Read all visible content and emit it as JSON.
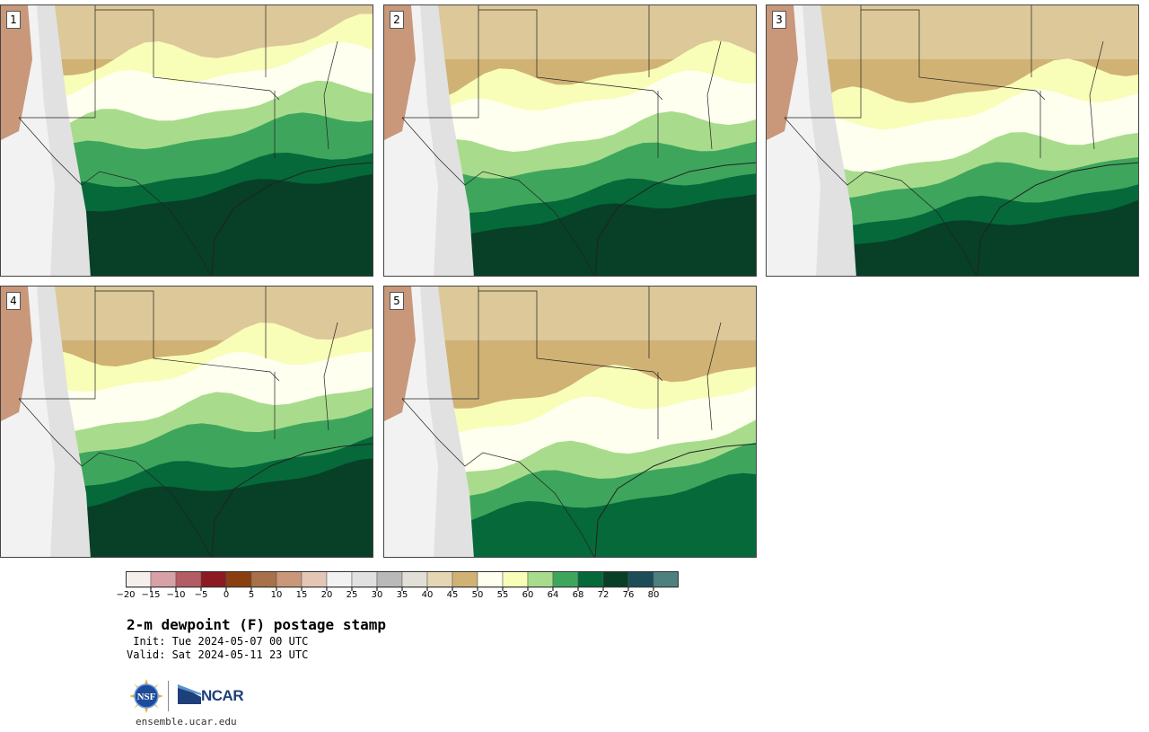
{
  "panels": [
    {
      "label": "1",
      "moist": 1.0
    },
    {
      "label": "2",
      "moist": 0.72
    },
    {
      "label": "3",
      "moist": 0.55
    },
    {
      "label": "4",
      "moist": 0.82
    },
    {
      "label": "5",
      "moist": 0.35
    }
  ],
  "colorbar": {
    "colors": [
      "#f5efec",
      "#d7a1a6",
      "#b45c63",
      "#8b1a22",
      "#8a3f10",
      "#a8714a",
      "#c9977a",
      "#e4c6b6",
      "#f2f2f2",
      "#e1e1e1",
      "#b9b9b9",
      "#e2e0d6",
      "#e5d7b3",
      "#d0b274",
      "#fffff0",
      "#f8fdb8",
      "#a8dc8c",
      "#3ea65c",
      "#05693a",
      "#073f27",
      "#1c4e5a",
      "#4e8080"
    ],
    "ticks": [
      "−20",
      "−15",
      "−10",
      "−5",
      "0",
      "5",
      "10",
      "15",
      "20",
      "25",
      "30",
      "35",
      "40",
      "45",
      "50",
      "55",
      "60",
      "64",
      "68",
      "72",
      "76",
      "80"
    ]
  },
  "title": "2-m dewpoint (F) postage stamp",
  "init": " Init: Tue 2024-05-07 00 UTC",
  "valid": "Valid: Sat 2024-05-11 23 UTC",
  "logos": {
    "nsf": "NSF",
    "ncar": "NCAR"
  },
  "site": "ensemble.ucar.edu"
}
